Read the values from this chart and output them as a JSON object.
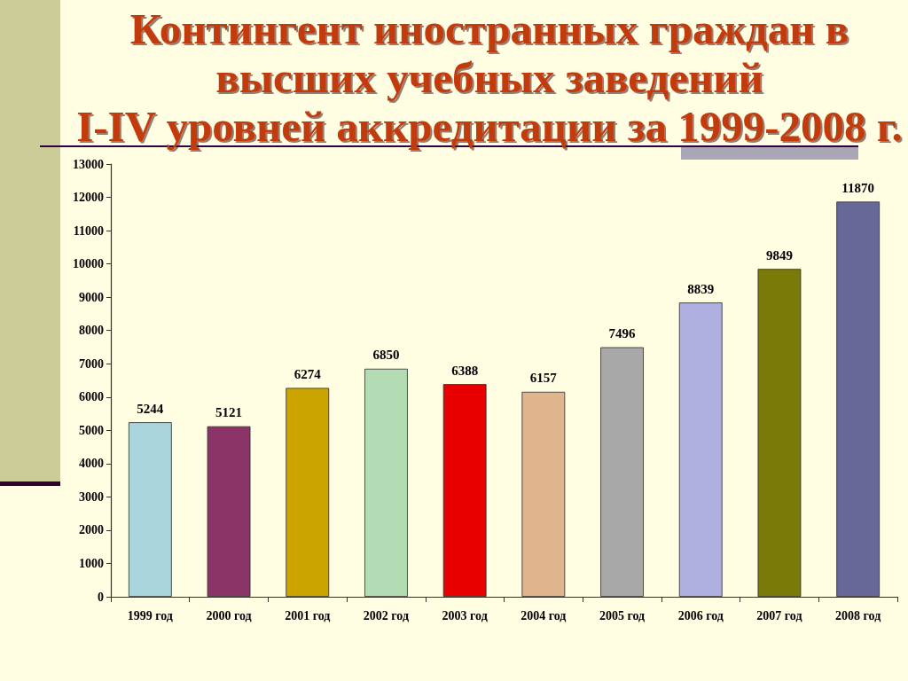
{
  "chart_data": {
    "type": "bar",
    "title": "Контингент иностранных граждан в\nвысших учебных заведений\nI-IV уровней аккредитации за 1999-2008 г.",
    "categories": [
      "1999 год",
      "2000 год",
      "2001 год",
      "2002 год",
      "2003 год",
      "2004 год",
      "2005 год",
      "2006 год",
      "2007 год",
      "2008 год"
    ],
    "values": [
      5244,
      5121,
      6274,
      6850,
      6388,
      6157,
      7496,
      8839,
      9849,
      11870
    ],
    "colors": [
      "#a8d4dc",
      "#8b3468",
      "#cca400",
      "#b4dcb4",
      "#e80000",
      "#e0b48c",
      "#a8a8a8",
      "#b0b0e0",
      "#7a7a08",
      "#686898"
    ],
    "ylim": [
      0,
      13000
    ],
    "yticks": [
      0,
      1000,
      2000,
      3000,
      4000,
      5000,
      6000,
      7000,
      8000,
      9000,
      10000,
      11000,
      12000,
      13000
    ],
    "data_labels": true
  }
}
